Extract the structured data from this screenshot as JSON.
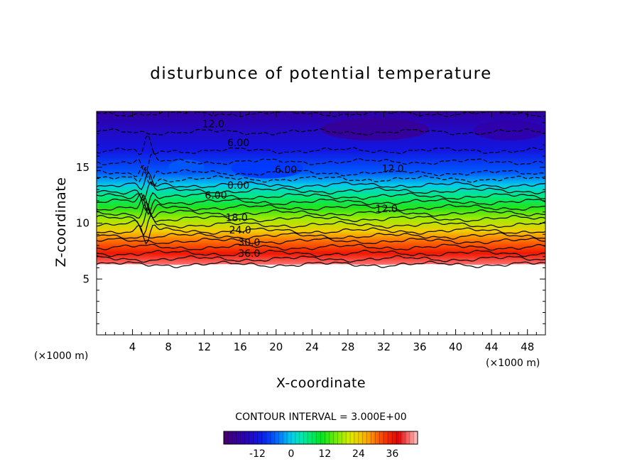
{
  "chart_data": {
    "type": "contour",
    "title": "disturbunce of potential temperature",
    "xlabel": "X-coordinate",
    "ylabel": "Z-coordinate",
    "x_unit": "(×1000 m)",
    "y_unit": "(×1000 m)",
    "xlim": [
      0,
      50
    ],
    "ylim": [
      0,
      20
    ],
    "x_ticks": [
      4,
      8,
      12,
      16,
      20,
      24,
      28,
      32,
      36,
      40,
      44,
      48
    ],
    "y_ticks": [
      5,
      10,
      15
    ],
    "contour_interval_label": "CONTOUR INTERVAL = 3.000E+00",
    "contour_interval": 3,
    "colorbar": {
      "min": -24,
      "max": 45,
      "ticks": [
        -12,
        0,
        12,
        24,
        36
      ]
    },
    "contour_labels": [
      {
        "text": "12.0",
        "x": 13.0,
        "z": 18.9
      },
      {
        "text": "6.00",
        "x": 15.8,
        "z": 17.2
      },
      {
        "text": "6.00",
        "x": 21.1,
        "z": 14.8
      },
      {
        "text": "12.0",
        "x": 33.0,
        "z": 14.9
      },
      {
        "text": "0.00",
        "x": 15.8,
        "z": 13.4
      },
      {
        "text": "6.00",
        "x": 13.3,
        "z": 12.5
      },
      {
        "text": "12.0",
        "x": 32.3,
        "z": 11.3
      },
      {
        "text": "18.0",
        "x": 15.6,
        "z": 10.5
      },
      {
        "text": "24.0",
        "x": 16.0,
        "z": 9.4
      },
      {
        "text": "30.0",
        "x": 17.0,
        "z": 8.3
      },
      {
        "text": "36.0",
        "x": 17.0,
        "z": 7.3
      }
    ],
    "field_profile": [
      {
        "z": 6.3,
        "value": 42
      },
      {
        "z": 7.3,
        "value": 36
      },
      {
        "z": 8.4,
        "value": 30
      },
      {
        "z": 9.3,
        "value": 24
      },
      {
        "z": 10.4,
        "value": 18
      },
      {
        "z": 11.4,
        "value": 12
      },
      {
        "z": 12.4,
        "value": 6
      },
      {
        "z": 13.4,
        "value": 0
      },
      {
        "z": 14.5,
        "value": -6
      },
      {
        "z": 16.5,
        "value": -12
      },
      {
        "z": 19.8,
        "value": -18
      }
    ],
    "cold_anomalies": [
      {
        "x": 31,
        "z": 18.4,
        "rx": 6,
        "rz": 1.0,
        "value": -20
      },
      {
        "x": 46,
        "z": 18.3,
        "rx": 4,
        "rz": 0.9,
        "value": -18
      },
      {
        "x": 19,
        "z": 14.9,
        "rx": 4,
        "rz": 0.9,
        "value": -8
      },
      {
        "x": 10,
        "z": 15.0,
        "rx": 2,
        "rz": 0.7,
        "value": -6
      }
    ]
  }
}
